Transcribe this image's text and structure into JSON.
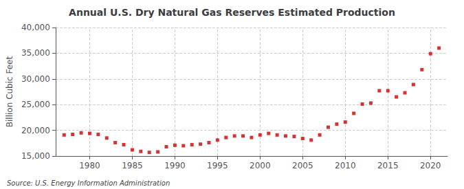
{
  "chart_data": {
    "type": "scatter",
    "title": "Annual U.S. Dry Natural Gas Reserves Estimated Production",
    "ylabel": "Billion Cubic Feet",
    "annotations": [
      "Source: U.S. Energy Information Administration"
    ],
    "x": [
      1977,
      1978,
      1979,
      1980,
      1981,
      1982,
      1983,
      1984,
      1985,
      1986,
      1987,
      1988,
      1989,
      1990,
      1991,
      1992,
      1993,
      1994,
      1995,
      1996,
      1997,
      1998,
      1999,
      2000,
      2001,
      2002,
      2003,
      2004,
      2005,
      2006,
      2007,
      2008,
      2009,
      2010,
      2011,
      2012,
      2013,
      2014,
      2015,
      2016,
      2017,
      2018,
      2019,
      2020,
      2021
    ],
    "values": [
      19100,
      19200,
      19500,
      19400,
      19200,
      18500,
      17600,
      17200,
      16200,
      15900,
      15700,
      15800,
      16800,
      17100,
      17000,
      17200,
      17300,
      17600,
      18100,
      18600,
      18900,
      18900,
      18600,
      19100,
      19400,
      19100,
      18900,
      18800,
      18400,
      18100,
      19100,
      20600,
      21200,
      21600,
      23300,
      25100,
      25300,
      27700,
      27700,
      26500,
      27300,
      28900,
      31800,
      34900,
      36000
    ],
    "color": "#cc0000",
    "marker": "square",
    "xlim": [
      1976,
      2022
    ],
    "xticks": [
      1980,
      1985,
      1990,
      1995,
      2000,
      2005,
      2010,
      2015,
      2020
    ],
    "ylim": [
      15000,
      40000
    ],
    "yticks": [
      {
        "value": 15000,
        "label": "15,000"
      },
      {
        "value": 20000,
        "label": "20,000"
      },
      {
        "value": 25000,
        "label": "25,000"
      },
      {
        "value": 30000,
        "label": "30,000"
      },
      {
        "value": 35000,
        "label": "35,000"
      },
      {
        "value": 40000,
        "label": "40,000"
      }
    ],
    "grid": true
  }
}
